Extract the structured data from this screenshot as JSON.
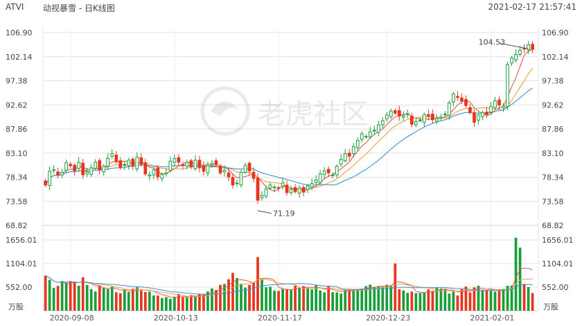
{
  "header": {
    "symbol": "ATVI",
    "title": "动视暴雪 - 日K线图",
    "timestamp": "2021-02-17 21:57:41"
  },
  "watermark": {
    "text": "老虎社区"
  },
  "colors": {
    "up": "#1a9e3c",
    "down": "#e8351e",
    "ma5": "#e05555",
    "ma10": "#f0a030",
    "ma20": "#3a8fd8",
    "grid": "#e2e2e2",
    "axis_text": "#444444"
  },
  "chart_data": [
    {
      "type": "candlestick",
      "yticks": [
        68.82,
        73.58,
        78.34,
        83.1,
        87.86,
        92.62,
        97.38,
        102.14,
        106.9
      ],
      "ylim": [
        68.82,
        106.9
      ],
      "xticks": [
        "2020-09-08",
        "2020-10-13",
        "2020-11-17",
        "2020-12-23",
        "2021-02-01"
      ],
      "annotations": [
        {
          "label": "104.53",
          "value": 104.53,
          "kind": "high"
        },
        {
          "label": "71.19",
          "value": 71.19,
          "kind": "low"
        }
      ],
      "closes": [
        76.8,
        79.5,
        79.8,
        78.8,
        79.3,
        81.2,
        80.6,
        79.6,
        81.3,
        78.8,
        79.4,
        80.2,
        81.3,
        79.8,
        80.5,
        82.1,
        83.0,
        81.5,
        80.2,
        80.8,
        81.7,
        80.5,
        82.3,
        80.9,
        79.0,
        78.8,
        79.8,
        78.4,
        78.9,
        79.2,
        81.5,
        82.0,
        81.3,
        80.6,
        81.3,
        80.4,
        81.7,
        80.2,
        79.5,
        80.7,
        81.1,
        80.8,
        79.2,
        79.7,
        78.4,
        76.8,
        77.2,
        79.3,
        80.7,
        79.6,
        78.1,
        73.8,
        74.8,
        76.0,
        76.8,
        76.4,
        76.3,
        77.2,
        75.3,
        75.9,
        75.5,
        76.2,
        75.4,
        76.6,
        77.1,
        77.8,
        79.0,
        79.6,
        79.2,
        78.8,
        80.5,
        81.9,
        83.0,
        82.5,
        84.4,
        85.6,
        86.9,
        86.4,
        87.3,
        87.6,
        88.7,
        89.5,
        90.6,
        91.4,
        91.0,
        90.4,
        90.5,
        90.9,
        88.8,
        89.3,
        89.6,
        90.7,
        90.4,
        89.7,
        89.9,
        90.2,
        90.8,
        93.0,
        94.8,
        94.1,
        93.4,
        92.5,
        91.1,
        89.2,
        90.6,
        91.1,
        90.7,
        92.3,
        93.4,
        92.6,
        92.4,
        100.6,
        101.9,
        102.6,
        103.4,
        103.8,
        104.5,
        103.6
      ],
      "volume": {
        "yticks": [
          "1656.01",
          "1104.01",
          "552.00"
        ],
        "unit": "万股",
        "values": [
          822,
          725,
          533,
          582,
          697,
          655,
          695,
          681,
          586,
          785,
          604,
          508,
          452,
          589,
          536,
          505,
          563,
          433,
          409,
          493,
          438,
          518,
          549,
          477,
          439,
          448,
          357,
          356,
          297,
          318,
          279,
          329,
          395,
          313,
          312,
          364,
          332,
          391,
          378,
          452,
          522,
          486,
          605,
          626,
          738,
          888,
          764,
          630,
          541,
          605,
          670,
          1256,
          727,
          550,
          562,
          471,
          464,
          511,
          501,
          498,
          588,
          536,
          579,
          533,
          499,
          594,
          474,
          431,
          572,
          434,
          431,
          403,
          495,
          503,
          502,
          501,
          515,
          578,
          610,
          552,
          578,
          561,
          608,
          593,
          1107,
          503,
          476,
          419,
          450,
          413,
          416,
          427,
          501,
          463,
          549,
          520,
          498,
          402,
          446,
          358,
          509,
          567,
          430,
          547,
          585,
          481,
          474,
          492,
          448,
          464,
          512,
          585,
          590,
          1709,
          1479,
          627,
          554,
          416
        ]
      }
    }
  ]
}
